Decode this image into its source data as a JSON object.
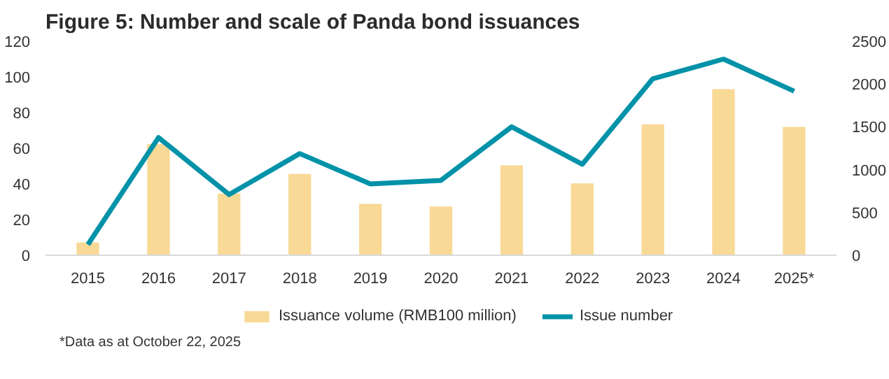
{
  "chart_data": {
    "type": "bar",
    "title": "Figure 5: Number and scale of Panda bond issuances",
    "categories": [
      "2015",
      "2016",
      "2017",
      "2018",
      "2019",
      "2020",
      "2021",
      "2022",
      "2023",
      "2024",
      "2025*"
    ],
    "series": [
      {
        "name": "Issuance volume (RMB100 million)",
        "axis": "y2",
        "color": "#f8d995",
        "values": [
          150,
          1300,
          720,
          950,
          600,
          570,
          1050,
          840,
          1530,
          1940,
          1500
        ]
      },
      {
        "name": "Issue number",
        "type": "line",
        "color": "#0092a8",
        "values": [
          6,
          66,
          34,
          57,
          40,
          42,
          72,
          51,
          99,
          110,
          92
        ]
      }
    ],
    "ylim": [
      0,
      120
    ],
    "yticks": [
      0,
      20,
      40,
      60,
      80,
      100,
      120
    ],
    "y2lim": [
      0,
      2500
    ],
    "y2ticks": [
      0,
      500,
      1000,
      1500,
      2000,
      2500
    ],
    "legend": "bottom",
    "grid": false,
    "marker": "none",
    "line_style": "solid",
    "annotations": [
      "*Data as at October 22, 2025"
    ]
  }
}
